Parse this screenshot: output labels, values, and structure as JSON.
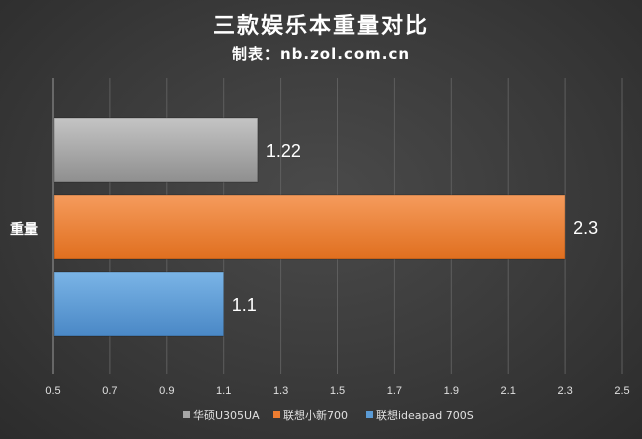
{
  "chart_data": {
    "type": "bar",
    "orientation": "horizontal",
    "title": "三款娱乐本重量对比",
    "subtitle": "制表：nb.zol.com.cn",
    "categories": [
      "重量"
    ],
    "series": [
      {
        "name": "华硕U305UA",
        "values": [
          1.22
        ],
        "color": "#a6a6a6"
      },
      {
        "name": "联想小新700",
        "values": [
          2.3
        ],
        "color": "#ed7d31"
      },
      {
        "name": "联想ideapad 700S",
        "values": [
          1.1
        ],
        "color": "#5b9bd5"
      }
    ],
    "xlim": [
      0.5,
      2.5
    ],
    "xticks": [
      "0.5",
      "0.7",
      "0.9",
      "1.1",
      "1.3",
      "1.5",
      "1.7",
      "1.9",
      "2.1",
      "2.3",
      "2.5"
    ],
    "data_labels": [
      "1.22",
      "2.3",
      "1.1"
    ],
    "grid": true,
    "legend_position": "bottom"
  }
}
